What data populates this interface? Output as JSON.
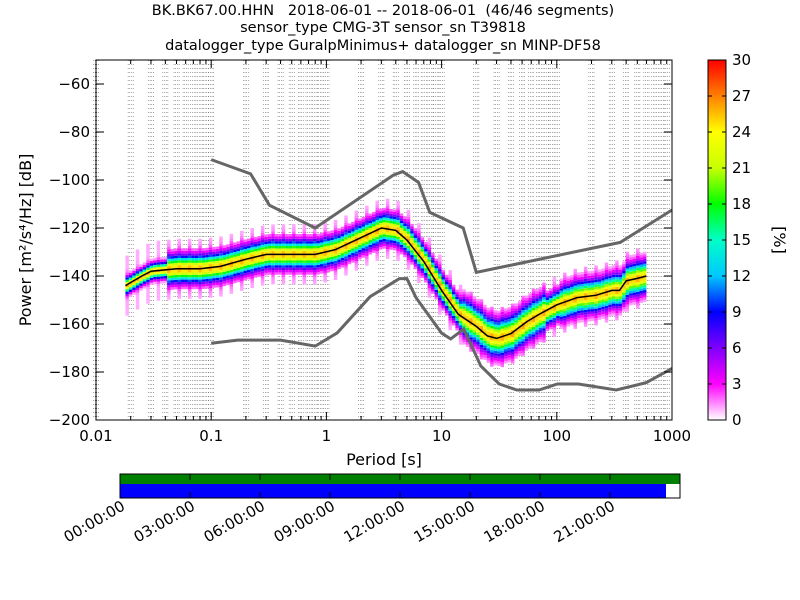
{
  "title": {
    "line1": "BK.BK67.00.HHN   2018-06-01 -- 2018-06-01  (46/46 segments)",
    "line2": "sensor_type CMG-3T sensor_sn T39818",
    "line3": "datalogger_type GuralpMinimus+ datalogger_sn MINP-DF58"
  },
  "chart_data": {
    "type": "heatmap",
    "xlabel": "Period [s]",
    "ylabel": "Power [m²/s⁴/Hz] [dB]",
    "x_scale": "log",
    "xlim": [
      0.01,
      1000
    ],
    "ylim": [
      -200,
      -50
    ],
    "x_ticks": [
      {
        "value": 0.01,
        "label": "0.01"
      },
      {
        "value": 0.1,
        "label": "0.1"
      },
      {
        "value": 1,
        "label": "1"
      },
      {
        "value": 10,
        "label": "10"
      },
      {
        "value": 100,
        "label": "100"
      },
      {
        "value": 1000,
        "label": "1000"
      }
    ],
    "y_ticks": [
      {
        "value": -60,
        "label": "−60"
      },
      {
        "value": -80,
        "label": "−80"
      },
      {
        "value": -100,
        "label": "−100"
      },
      {
        "value": -120,
        "label": "−120"
      },
      {
        "value": -140,
        "label": "−140"
      },
      {
        "value": -160,
        "label": "−160"
      },
      {
        "value": -180,
        "label": "−180"
      },
      {
        "value": -200,
        "label": "−200"
      }
    ],
    "grid": "dotted vertical",
    "colorbar": {
      "label": "[%]",
      "range": [
        0,
        30
      ],
      "ticks": [
        "0",
        "3",
        "6",
        "9",
        "12",
        "15",
        "18",
        "21",
        "24",
        "27",
        "30"
      ]
    },
    "noise_models": [
      {
        "x": [
          0.1,
          0.22,
          0.32,
          0.8,
          3.8,
          4.6,
          6.3,
          7.9,
          15.4,
          20,
          354.8,
          1000
        ],
        "y": [
          -91.5,
          -97.4,
          -110.5,
          -120,
          -98,
          -96.5,
          -101,
          -113.5,
          -120,
          -138.5,
          -126,
          -112.5
        ]
      },
      {
        "x": [
          0.1,
          0.17,
          0.4,
          0.8,
          1.24,
          2.4,
          4.3,
          5,
          6,
          10,
          12,
          15.6,
          21.9,
          31.6,
          45,
          70,
          101,
          154,
          328,
          600,
          1000
        ],
        "y": [
          -168,
          -166.7,
          -166.7,
          -169.2,
          -163.7,
          -148.6,
          -141.1,
          -141.1,
          -149,
          -163.8,
          -166.2,
          -162.1,
          -177.5,
          -185,
          -187.5,
          -187.5,
          -185,
          -185,
          -187.5,
          -184.4,
          -178.5
        ]
      }
    ],
    "mode_curve": {
      "x": [
        0.018,
        0.025,
        0.03,
        0.05,
        0.08,
        0.12,
        0.2,
        0.3,
        0.5,
        0.8,
        1.2,
        2,
        3,
        4,
        5,
        7,
        10,
        14,
        20,
        25,
        30,
        40,
        55,
        70,
        100,
        150,
        220,
        300,
        350,
        400,
        500,
        600
      ],
      "y": [
        -144,
        -140,
        -138,
        -137,
        -137,
        -136,
        -133,
        -131,
        -131,
        -131,
        -129,
        -124,
        -120,
        -121,
        -125,
        -134,
        -146,
        -156,
        -161,
        -165,
        -166,
        -164,
        -159,
        -156,
        -152,
        -149,
        -148,
        -146,
        -146,
        -142,
        -141,
        -140
      ]
    },
    "data_availability": {
      "time_labels": [
        "00:00:00",
        "03:00:00",
        "06:00:00",
        "09:00:00",
        "12:00:00",
        "15:00:00",
        "18:00:00",
        "21:00:00"
      ],
      "gaps_color": "#008000",
      "data_color": "#0000ff",
      "coverage_fraction": 0.975
    }
  }
}
